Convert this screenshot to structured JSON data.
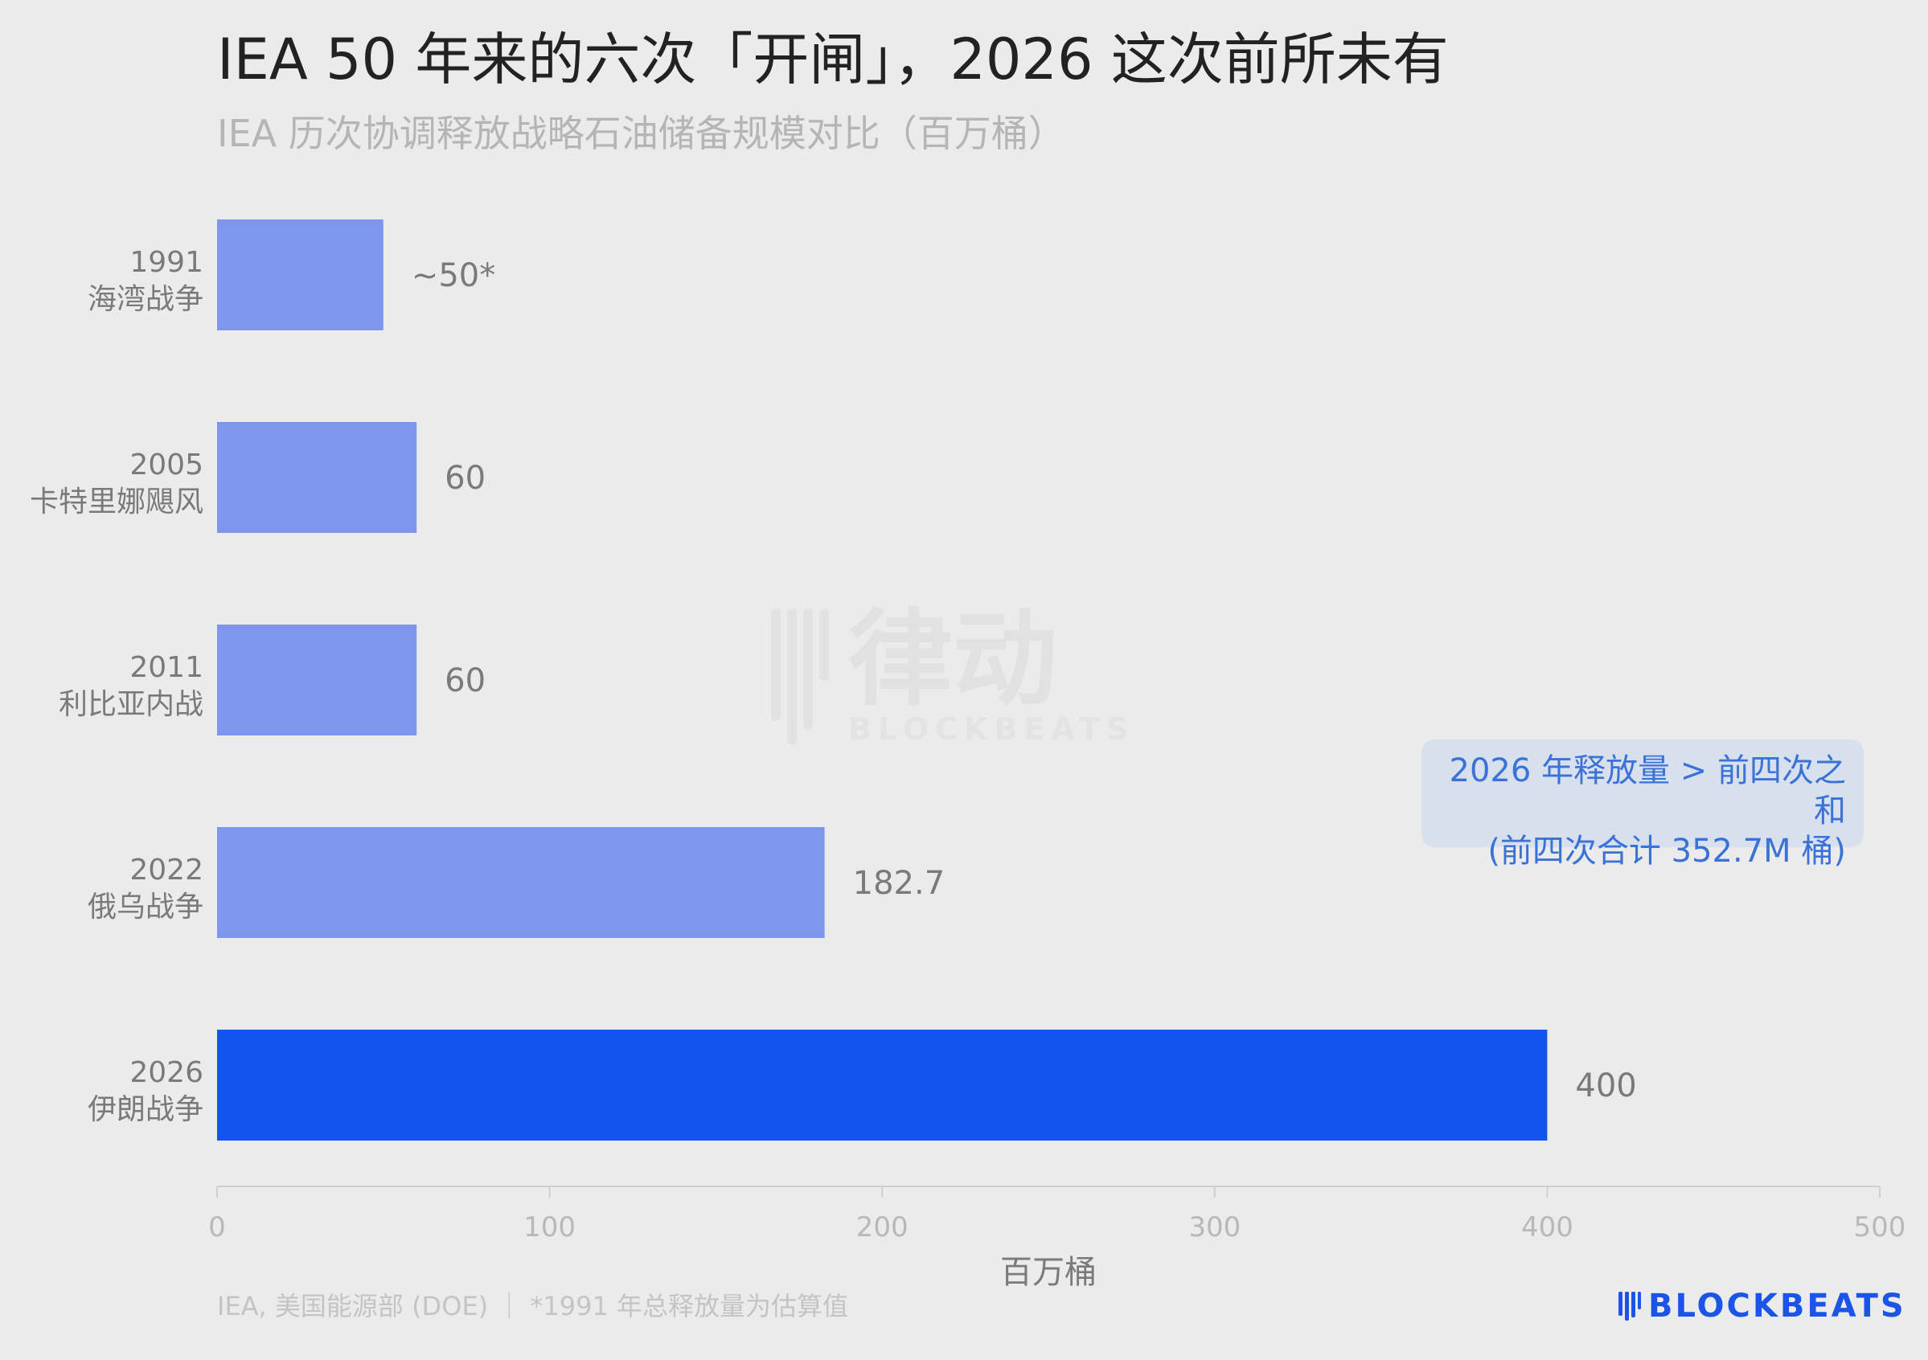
{
  "title": "IEA 50 年来的六次「开闸」，2026 这次前所未有",
  "subtitle": "IEA 历次协调释放战略石油储备规模对比（百万桶）",
  "chart_data": {
    "type": "bar",
    "orientation": "horizontal",
    "categories": [
      {
        "year": "1991",
        "name": "海湾战争"
      },
      {
        "year": "2005",
        "name": "卡特里娜飓风"
      },
      {
        "year": "2011",
        "name": "利比亚内战"
      },
      {
        "year": "2022",
        "name": "俄乌战争"
      },
      {
        "year": "2026",
        "name": "伊朗战争"
      }
    ],
    "values": [
      50,
      60,
      60,
      182.7,
      400
    ],
    "value_labels": [
      "~50*",
      "60",
      "60",
      "182.7",
      "400"
    ],
    "colors": [
      "#7f96ed",
      "#7f96ed",
      "#7f96ed",
      "#7f96ed",
      "#1155ec"
    ],
    "xlim": [
      0,
      500
    ],
    "xticks": [
      "0",
      "100",
      "200",
      "300",
      "400",
      "500"
    ],
    "xlabel": "百万桶",
    "grid": false,
    "annotation": {
      "line1": "2026 年释放量 > 前四次之和",
      "line2": "(前四次合计 352.7M 桶)"
    }
  },
  "footer": {
    "source_note": "IEA, 美国能源部 (DOE) ｜ *1991 年总释放量为估算值",
    "brand": "BLOCKBEATS"
  },
  "watermark": {
    "text_cn": "律动",
    "text_en": "BLOCKBEATS"
  },
  "colors": {
    "background": "#ebebeb",
    "bar_regular": "#7f96ed",
    "bar_highlight": "#1155ec",
    "annotation_bg": "#d8e0ed",
    "annotation_text": "#3a72d8",
    "brand": "#1a55e8"
  }
}
